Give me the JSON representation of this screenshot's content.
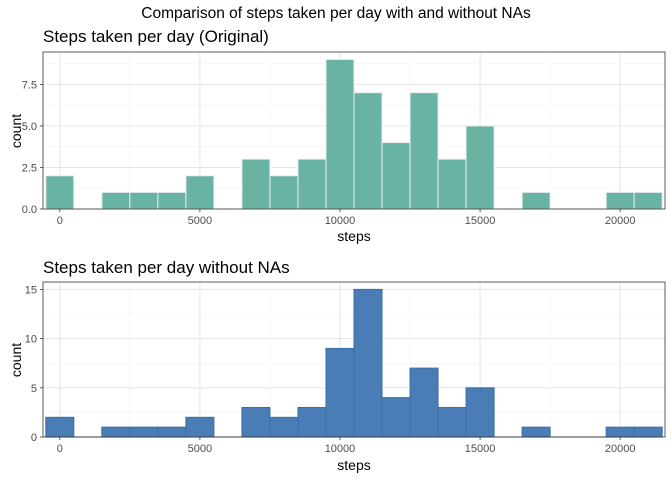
{
  "suptitle": "Comparison of steps taken per day with and without NAs",
  "chart_data": [
    {
      "type": "bar",
      "title": "Steps taken per day (Original)",
      "xlabel": "steps",
      "ylabel": "count",
      "bin_width": 1000,
      "x": [
        0,
        1000,
        2000,
        3000,
        4000,
        5000,
        6000,
        7000,
        8000,
        9000,
        10000,
        11000,
        12000,
        13000,
        14000,
        15000,
        16000,
        17000,
        18000,
        19000,
        20000,
        21000
      ],
      "values": [
        2,
        0,
        1,
        1,
        1,
        2,
        0,
        3,
        2,
        3,
        9,
        7,
        4,
        7,
        3,
        5,
        0,
        1,
        0,
        0,
        1,
        1
      ],
      "xlim": [
        -600,
        21600
      ],
      "ylim": [
        0,
        9.45
      ],
      "xticks": [
        0,
        5000,
        10000,
        15000,
        20000
      ],
      "xtick_labels": [
        "0",
        "5000",
        "10000",
        "15000",
        "20000"
      ],
      "yticks": [
        0,
        2.5,
        5,
        7.5
      ],
      "ytick_labels": [
        "0.0",
        "2.5",
        "5.0",
        "7.5"
      ],
      "grid": true,
      "fill_color": "#69b3a2",
      "edge_color": "#e9ecef"
    },
    {
      "type": "bar",
      "title": "Steps taken per day without NAs",
      "xlabel": "steps",
      "ylabel": "count",
      "bin_width": 1000,
      "x": [
        0,
        1000,
        2000,
        3000,
        4000,
        5000,
        6000,
        7000,
        8000,
        9000,
        10000,
        11000,
        12000,
        13000,
        14000,
        15000,
        16000,
        17000,
        18000,
        19000,
        20000,
        21000
      ],
      "values": [
        2,
        0,
        1,
        1,
        1,
        2,
        0,
        3,
        2,
        3,
        9,
        15,
        4,
        7,
        3,
        5,
        0,
        1,
        0,
        0,
        1,
        1
      ],
      "xlim": [
        -600,
        21600
      ],
      "ylim": [
        0,
        15.75
      ],
      "xticks": [
        0,
        5000,
        10000,
        15000,
        20000
      ],
      "xtick_labels": [
        "0",
        "5000",
        "10000",
        "15000",
        "20000"
      ],
      "yticks": [
        0,
        5,
        10,
        15
      ],
      "ytick_labels": [
        "0",
        "5",
        "10",
        "15"
      ],
      "grid": true,
      "fill_color": "#4a7db5",
      "edge_color": "#3a6ea5"
    }
  ]
}
